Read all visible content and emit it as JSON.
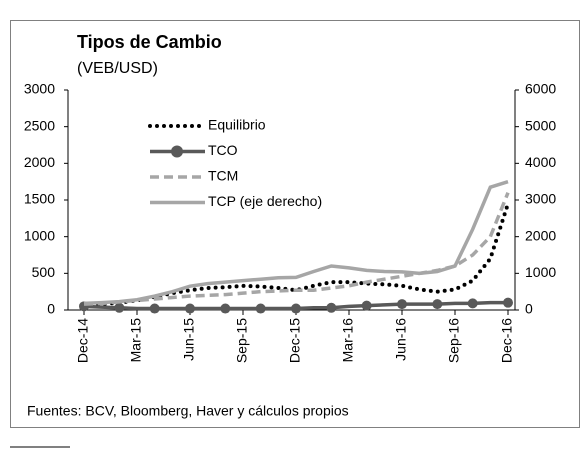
{
  "chart_data": {
    "type": "line",
    "title": "Tipos de Cambio",
    "subtitle": "(VEB/USD)",
    "source": "Fuentes: BCV, Bloomberg, Haver y cálculos propios",
    "categories": [
      "Dec-14",
      null,
      null,
      "Mar-15",
      null,
      null,
      "Jun-15",
      null,
      null,
      "Sep-15",
      null,
      null,
      "Dec-15",
      null,
      null,
      "Mar-16",
      null,
      null,
      "Jun-16",
      null,
      null,
      "Sep-16",
      null,
      null,
      "Dec-16"
    ],
    "series": [
      {
        "name": "Equilibrio",
        "color": "#000000",
        "dash": "dotted",
        "values": [
          60,
          80,
          100,
          130,
          180,
          230,
          270,
          300,
          310,
          330,
          320,
          300,
          270,
          330,
          380,
          380,
          360,
          350,
          330,
          280,
          250,
          280,
          400,
          700,
          1450
        ]
      },
      {
        "name": "TCO",
        "color": "#595959",
        "marker": "circle",
        "values": [
          50,
          40,
          30,
          20,
          20,
          20,
          20,
          20,
          20,
          20,
          20,
          20,
          20,
          30,
          30,
          50,
          60,
          70,
          80,
          80,
          80,
          90,
          90,
          100,
          100
        ]
      },
      {
        "name": "TCM",
        "color": "#a6a6a6",
        "dash": "dashed",
        "values": [
          80,
          90,
          110,
          130,
          150,
          170,
          190,
          200,
          210,
          230,
          250,
          260,
          270,
          270,
          300,
          330,
          380,
          420,
          460,
          500,
          540,
          600,
          750,
          1000,
          1600
        ]
      },
      {
        "name": "TCP (eje derecho)",
        "color": "#a6a6a6",
        "axis": "y2",
        "values": [
          180,
          200,
          230,
          280,
          380,
          500,
          650,
          720,
          760,
          800,
          840,
          880,
          890,
          1050,
          1200,
          1150,
          1080,
          1050,
          1040,
          1000,
          1050,
          1200,
          2200,
          3350,
          3500
        ]
      }
    ],
    "ylim": [
      0,
      3000
    ],
    "yticks": [
      0,
      500,
      1000,
      1500,
      2000,
      2500,
      3000
    ],
    "y2lim": [
      0,
      6000
    ],
    "y2ticks": [
      0,
      1000,
      2000,
      3000,
      4000,
      5000,
      6000
    ],
    "legend": "upper left"
  }
}
